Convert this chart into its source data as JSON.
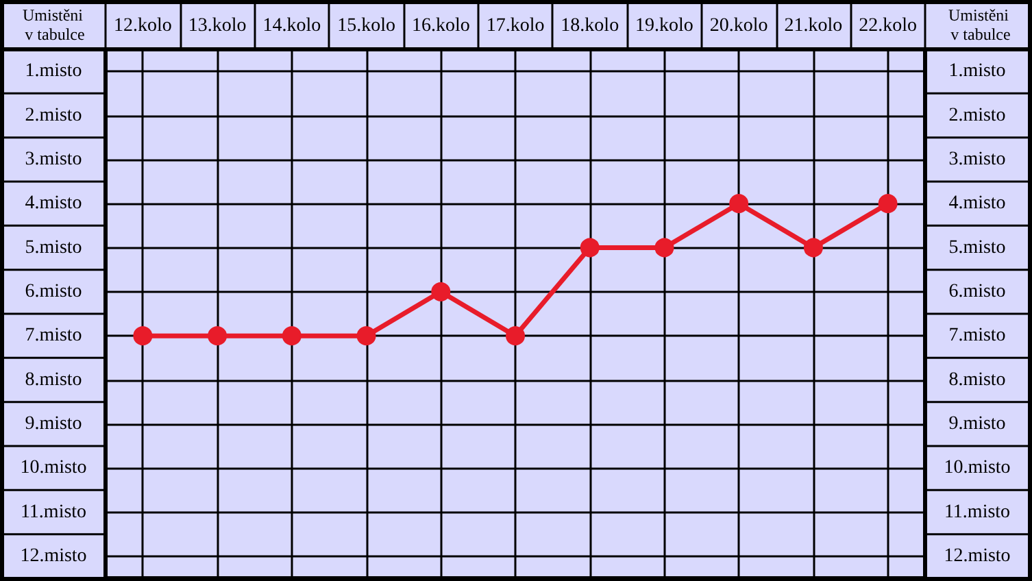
{
  "chart_data": {
    "type": "line",
    "categories": [
      "12.kolo",
      "13.kolo",
      "14.kolo",
      "15.kolo",
      "16.kolo",
      "17.kolo",
      "18.kolo",
      "19.kolo",
      "20.kolo",
      "21.kolo",
      "22.kolo"
    ],
    "series": [
      {
        "color": "#e81c2a",
        "values": [
          7,
          7,
          7,
          7,
          6,
          7,
          5,
          5,
          4,
          5,
          4
        ]
      }
    ],
    "ylabel": "Umistěni v tabulce",
    "y2label": "Umistěni v tabulce",
    "ylim": [
      12.5,
      0.5
    ],
    "yticks": [
      {
        "value": 1,
        "label": "1.misto"
      },
      {
        "value": 2,
        "label": "2.misto"
      },
      {
        "value": 3,
        "label": "3.misto"
      },
      {
        "value": 4,
        "label": "4.misto"
      },
      {
        "value": 5,
        "label": "5.misto"
      },
      {
        "value": 6,
        "label": "6.misto"
      },
      {
        "value": 7,
        "label": "7.misto"
      },
      {
        "value": 8,
        "label": "8.misto"
      },
      {
        "value": 9,
        "label": "9.misto"
      },
      {
        "value": 10,
        "label": "10.misto"
      },
      {
        "value": 11,
        "label": "11.misto"
      },
      {
        "value": 12,
        "label": "12.misto"
      }
    ],
    "y2lim": [
      12.5,
      0.5
    ],
    "y2ticks": [
      {
        "value": 1,
        "label": "1.misto"
      },
      {
        "value": 2,
        "label": "2.misto"
      },
      {
        "value": 3,
        "label": "3.misto"
      },
      {
        "value": 4,
        "label": "4.misto"
      },
      {
        "value": 5,
        "label": "5.misto"
      },
      {
        "value": 6,
        "label": "6.misto"
      },
      {
        "value": 7,
        "label": "7.misto"
      },
      {
        "value": 8,
        "label": "8.misto"
      },
      {
        "value": 9,
        "label": "9.misto"
      },
      {
        "value": 10,
        "label": "10.misto"
      },
      {
        "value": 11,
        "label": "11.misto"
      },
      {
        "value": 12,
        "label": "12.misto"
      }
    ],
    "grid": true,
    "marker": "circle",
    "line_style": "solid"
  }
}
